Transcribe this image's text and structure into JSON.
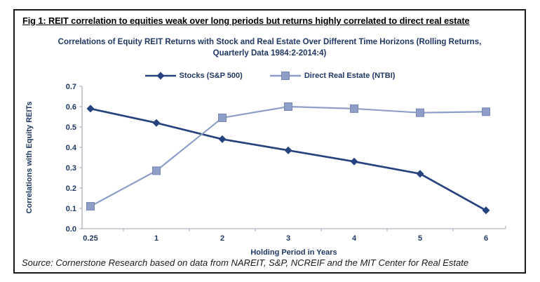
{
  "figure": {
    "header": "Fig 1: REIT correlation to equities weak over long periods but returns highly correlated to direct real estate",
    "source": "Source: Cornerstone Research based on data from NAREIT, S&P, NCREIF and the MIT Center for Real Estate"
  },
  "chart_data": {
    "type": "line",
    "title": "Correlations of Equity REIT Returns with Stock and Real Estate Over Different Time Horizons (Rolling Returns, Quarterly Data 1984:2-2014:4)",
    "title_lines": [
      "Correlations of Equity REIT Returns with Stock and Real Estate Over Different Time Horizons (Rolling Returns,",
      "Quarterly Data 1984:2-2014:4)"
    ],
    "categories": [
      "0.25",
      "1",
      "2",
      "3",
      "4",
      "5",
      "6"
    ],
    "series": [
      {
        "name": "Stocks (S&P 500)",
        "marker": "diamond",
        "color": "#26437F",
        "values": [
          0.59,
          0.52,
          0.44,
          0.385,
          0.33,
          0.27,
          0.09
        ]
      },
      {
        "name": "Direct Real Estate (NTBI)",
        "marker": "square",
        "color": "#8F9EC9",
        "marker_edge": "#7786B3",
        "values": [
          0.11,
          0.285,
          0.545,
          0.6,
          0.59,
          0.57,
          0.575
        ]
      }
    ],
    "xlabel": "Holding Period in Years",
    "ylabel": "Correlations with Equity REITs",
    "ylim": [
      0,
      0.7
    ],
    "yticks": [
      "0.0",
      "0.1",
      "0.2",
      "0.3",
      "0.4",
      "0.5",
      "0.6",
      "0.7"
    ],
    "grid": false,
    "legend_position": "top",
    "colors": {
      "text": "#1F3864",
      "axis": "#AFB4BD"
    }
  }
}
